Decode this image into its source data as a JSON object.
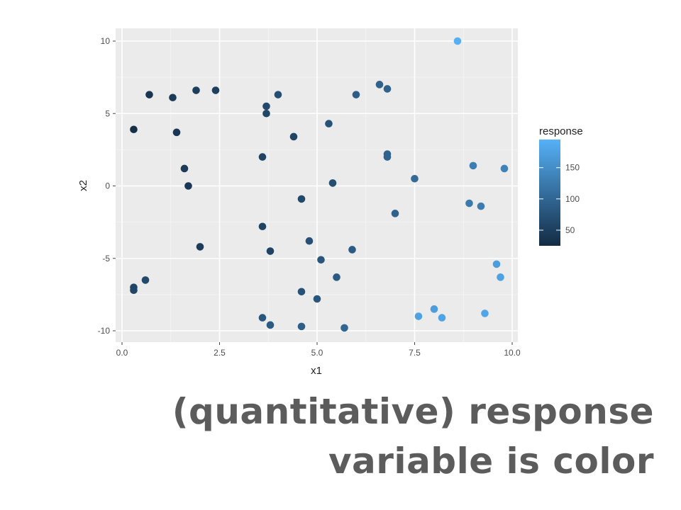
{
  "slide": {
    "caption_line_1": "(quantitative) response",
    "caption_line_2": "variable is color"
  },
  "chart_data": {
    "type": "scatter",
    "xlabel": "x1",
    "ylabel": "x2",
    "xlim": [
      0,
      10
    ],
    "ylim": [
      -10,
      10
    ],
    "x_ticks": [
      "0.0",
      "2.5",
      "5.0",
      "7.5",
      "10.0"
    ],
    "x_tick_values": [
      0,
      2.5,
      5,
      7.5,
      10
    ],
    "y_ticks": [
      "-10",
      "-5",
      "0",
      "5",
      "10"
    ],
    "y_tick_values": [
      -10,
      -5,
      0,
      5,
      10
    ],
    "grid": true,
    "background": "#ebebeb",
    "legend": {
      "title": "response",
      "placement": "right",
      "ticks": [
        "50",
        "100",
        "150"
      ],
      "tick_values": [
        50,
        100,
        150
      ],
      "range": [
        25,
        195
      ],
      "color_low": "#132b43",
      "color_high": "#56b1f7"
    },
    "points": [
      {
        "x": 8.6,
        "y": 10.0,
        "response": 192
      },
      {
        "x": 0.3,
        "y": 3.9,
        "response": 30
      },
      {
        "x": 0.7,
        "y": 6.3,
        "response": 38
      },
      {
        "x": 1.3,
        "y": 6.1,
        "response": 45
      },
      {
        "x": 1.4,
        "y": 3.7,
        "response": 42
      },
      {
        "x": 1.9,
        "y": 6.6,
        "response": 48
      },
      {
        "x": 2.4,
        "y": 6.6,
        "response": 52
      },
      {
        "x": 3.7,
        "y": 5.5,
        "response": 63
      },
      {
        "x": 3.7,
        "y": 5.0,
        "response": 60
      },
      {
        "x": 4.0,
        "y": 6.3,
        "response": 70
      },
      {
        "x": 4.4,
        "y": 3.4,
        "response": 58
      },
      {
        "x": 5.3,
        "y": 4.3,
        "response": 75
      },
      {
        "x": 6.0,
        "y": 6.3,
        "response": 90
      },
      {
        "x": 6.6,
        "y": 7.0,
        "response": 95
      },
      {
        "x": 6.8,
        "y": 6.7,
        "response": 95
      },
      {
        "x": 1.6,
        "y": 1.2,
        "response": 45
      },
      {
        "x": 1.7,
        "y": 0.0,
        "response": 42
      },
      {
        "x": 3.6,
        "y": 2.0,
        "response": 55
      },
      {
        "x": 5.4,
        "y": 0.2,
        "response": 70
      },
      {
        "x": 6.8,
        "y": 2.2,
        "response": 95
      },
      {
        "x": 6.8,
        "y": 2.0,
        "response": 95
      },
      {
        "x": 7.5,
        "y": 0.5,
        "response": 105
      },
      {
        "x": 9.0,
        "y": 1.4,
        "response": 130
      },
      {
        "x": 9.8,
        "y": 1.2,
        "response": 135
      },
      {
        "x": 4.6,
        "y": -0.9,
        "response": 62
      },
      {
        "x": 7.0,
        "y": -1.9,
        "response": 95
      },
      {
        "x": 8.9,
        "y": -1.2,
        "response": 125
      },
      {
        "x": 9.2,
        "y": -1.4,
        "response": 128
      },
      {
        "x": 3.6,
        "y": -2.8,
        "response": 55
      },
      {
        "x": 2.0,
        "y": -4.2,
        "response": 45
      },
      {
        "x": 3.8,
        "y": -4.5,
        "response": 55
      },
      {
        "x": 4.8,
        "y": -3.8,
        "response": 72
      },
      {
        "x": 5.9,
        "y": -4.4,
        "response": 85
      },
      {
        "x": 5.1,
        "y": -5.1,
        "response": 78
      },
      {
        "x": 5.5,
        "y": -6.3,
        "response": 85
      },
      {
        "x": 0.3,
        "y": -7.2,
        "response": 60
      },
      {
        "x": 0.3,
        "y": -7.0,
        "response": 58
      },
      {
        "x": 0.6,
        "y": -6.5,
        "response": 62
      },
      {
        "x": 4.6,
        "y": -7.3,
        "response": 75
      },
      {
        "x": 5.0,
        "y": -7.8,
        "response": 80
      },
      {
        "x": 3.6,
        "y": -9.1,
        "response": 80
      },
      {
        "x": 3.8,
        "y": -9.6,
        "response": 85
      },
      {
        "x": 4.6,
        "y": -9.7,
        "response": 90
      },
      {
        "x": 5.7,
        "y": -9.8,
        "response": 100
      },
      {
        "x": 7.6,
        "y": -9.0,
        "response": 175
      },
      {
        "x": 8.0,
        "y": -8.5,
        "response": 170
      },
      {
        "x": 8.2,
        "y": -9.1,
        "response": 178
      },
      {
        "x": 9.3,
        "y": -8.8,
        "response": 180
      },
      {
        "x": 9.6,
        "y": -5.4,
        "response": 170
      },
      {
        "x": 9.7,
        "y": -6.3,
        "response": 175
      }
    ]
  }
}
